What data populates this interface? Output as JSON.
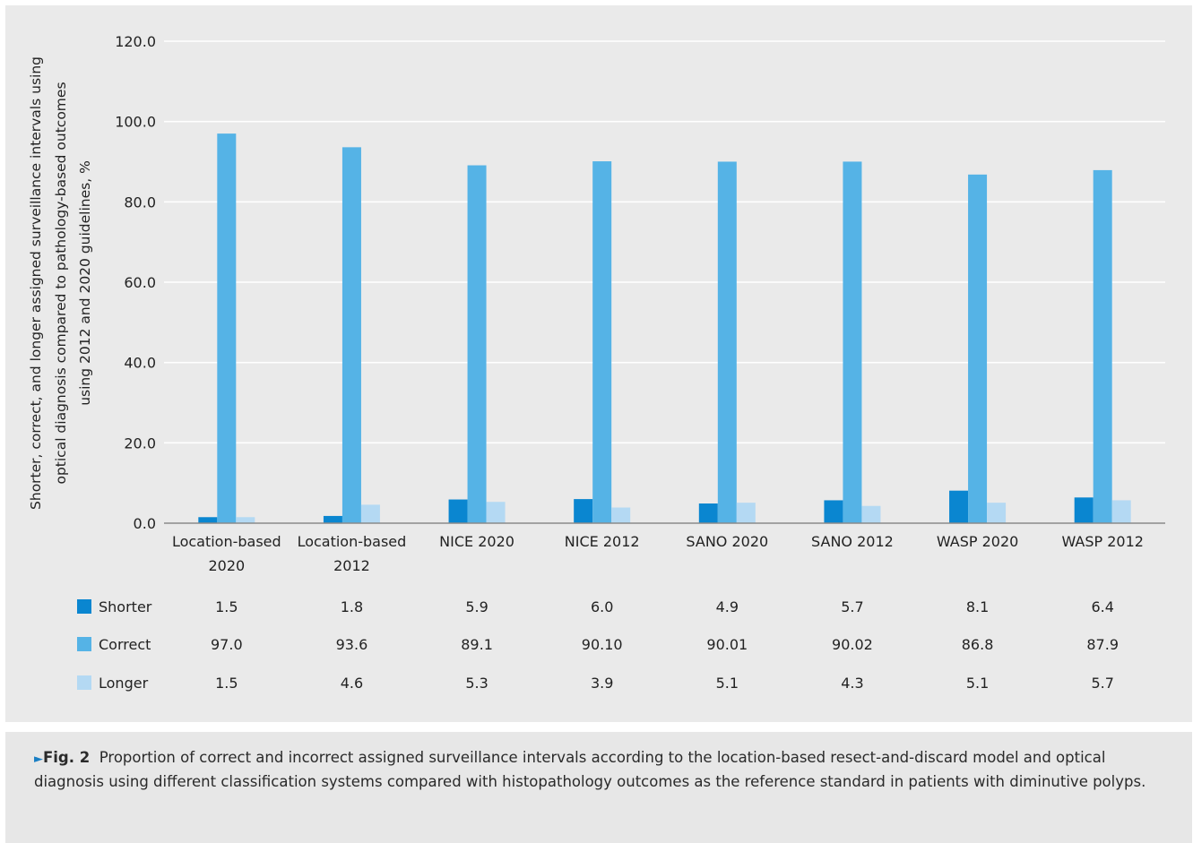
{
  "chart_data": {
    "type": "bar",
    "ylabel_lines": [
      "Shorter, correct, and longer assigned surveillance intervals using",
      "optical diagnosis compared to pathology-based outcomes",
      "using 2012 and 2020 guidelines, %"
    ],
    "ylim": [
      0,
      120
    ],
    "yticks": [
      "0.0",
      "20.0",
      "40.0",
      "60.0",
      "80.0",
      "100.0",
      "120.0"
    ],
    "grid": true,
    "categories": [
      [
        "Location-based",
        "2020"
      ],
      [
        "Location-based",
        "2012"
      ],
      [
        "NICE 2020"
      ],
      [
        "NICE 2012"
      ],
      [
        "SANO 2020"
      ],
      [
        "SANO 2012"
      ],
      [
        "WASP 2020"
      ],
      [
        "WASP 2012"
      ]
    ],
    "series": [
      {
        "name": "Shorter",
        "color": "#0a86d0",
        "values": [
          1.5,
          1.8,
          5.9,
          6.0,
          4.9,
          5.7,
          8.1,
          6.4
        ],
        "labels": [
          "1.5",
          "1.8",
          "5.9",
          "6.0",
          "4.9",
          "5.7",
          "8.1",
          "6.4"
        ]
      },
      {
        "name": "Correct",
        "color": "#55b3e6",
        "values": [
          97.0,
          93.6,
          89.1,
          90.1,
          90.01,
          90.02,
          86.8,
          87.9
        ],
        "labels": [
          "97.0",
          "93.6",
          "89.1",
          "90.10",
          "90.01",
          "90.02",
          "86.8",
          "87.9"
        ]
      },
      {
        "name": "Longer",
        "color": "#b4d9f3",
        "values": [
          1.5,
          4.6,
          5.3,
          3.9,
          5.1,
          4.3,
          5.1,
          5.7
        ],
        "labels": [
          "1.5",
          "4.6",
          "5.3",
          "3.9",
          "5.1",
          "4.3",
          "5.1",
          "5.7"
        ]
      }
    ],
    "legend": "data-table-below"
  },
  "caption": {
    "marker": "►",
    "label": "Fig. 2",
    "text": "Proportion of correct and incorrect assigned surveillance intervals according to the location-based resect-and-discard model and optical diagnosis using different classification systems compared with histopathology outcomes as the reference standard in patients with diminutive polyps."
  }
}
